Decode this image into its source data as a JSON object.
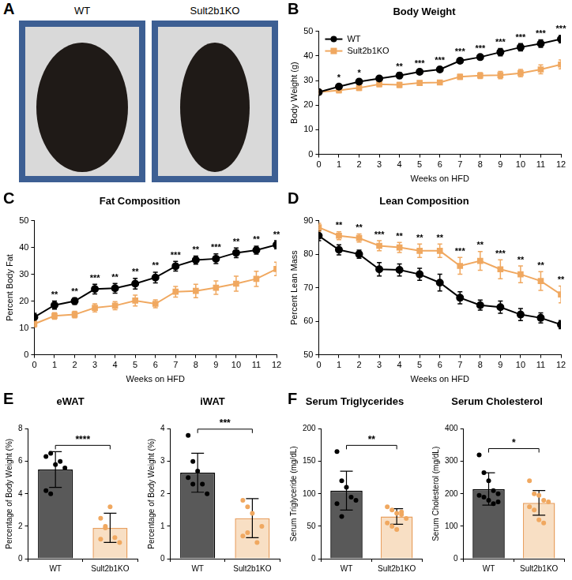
{
  "panel_a": {
    "panel_label": "A",
    "images": [
      {
        "caption": "WT"
      },
      {
        "caption": "Sult2b1KO"
      }
    ]
  },
  "chart_data": [
    {
      "panel_label": "B",
      "type": "line",
      "title": "Body Weight",
      "x_label": "Weeks on HFD",
      "y_label": "Body Weight (g)",
      "x": [
        0,
        1,
        2,
        3,
        4,
        5,
        6,
        7,
        8,
        9,
        10,
        11,
        12
      ],
      "xlim": [
        0,
        12
      ],
      "xticks": [
        0,
        1,
        2,
        3,
        4,
        5,
        6,
        7,
        8,
        9,
        10,
        11,
        12
      ],
      "ylim": [
        0,
        50
      ],
      "yticks": [
        0,
        10,
        20,
        30,
        40,
        50
      ],
      "grid": false,
      "legend": "upper left",
      "series": [
        {
          "name": "WT",
          "color": "#000000",
          "marker": "circle",
          "values": [
            25.3,
            27.5,
            29.5,
            30.8,
            32,
            33.5,
            34.5,
            38,
            39.5,
            41.5,
            43.5,
            45,
            46.8
          ],
          "errors": [
            0.8,
            1,
            1,
            1,
            1.2,
            0.8,
            1,
            1,
            0.8,
            1.5,
            1.5,
            1.5,
            1.5
          ]
        },
        {
          "name": "Sult2b1KO",
          "color": "#f0a860",
          "marker": "square",
          "values": [
            25.3,
            26,
            27,
            28.5,
            28.2,
            29,
            29.2,
            31.5,
            32,
            32.2,
            33,
            34.5,
            36.5
          ],
          "errors": [
            0.8,
            1,
            1,
            1,
            1,
            0.8,
            0.8,
            1,
            1.2,
            1.5,
            1.5,
            1.8,
            1.8
          ]
        }
      ],
      "significance": [
        null,
        "*",
        "*",
        null,
        "**",
        "***",
        "***",
        "***",
        "***",
        "***",
        "***",
        "***",
        "***"
      ]
    },
    {
      "panel_label": "C",
      "type": "line",
      "title": "Fat Composition",
      "x_label": "Weeks on HFD",
      "y_label": "Percent Body Fat",
      "x": [
        0,
        1,
        2,
        3,
        4,
        5,
        6,
        7,
        8,
        9,
        10,
        11,
        12
      ],
      "xlim": [
        0,
        12
      ],
      "xticks": [
        0,
        1,
        2,
        3,
        4,
        5,
        6,
        7,
        8,
        9,
        10,
        11,
        12
      ],
      "ylim": [
        0,
        50
      ],
      "yticks": [
        0,
        10,
        20,
        30,
        40,
        50
      ],
      "grid": false,
      "series": [
        {
          "name": "WT",
          "color": "#000000",
          "marker": "circle",
          "values": [
            14,
            18.5,
            20,
            24.5,
            24.8,
            26.5,
            28.8,
            33,
            35.3,
            35.8,
            38,
            39,
            41
          ],
          "errors": [
            1.5,
            1.5,
            1.2,
            1.8,
            1.8,
            2,
            2,
            1.8,
            1.5,
            1.8,
            1.8,
            1.5,
            1.5
          ]
        },
        {
          "name": "Sult2b1KO",
          "color": "#f0a860",
          "marker": "square",
          "values": [
            11.5,
            14.5,
            15,
            17.5,
            18.3,
            20.2,
            19,
            23.5,
            23.8,
            25,
            26.5,
            28.3,
            32
          ],
          "errors": [
            1.2,
            1.2,
            1.2,
            1.5,
            1.5,
            2,
            1.5,
            2,
            2.5,
            2.5,
            2.8,
            2.8,
            2.5
          ]
        }
      ],
      "significance": [
        null,
        "**",
        "**",
        "***",
        "**",
        "**",
        "**",
        "***",
        "**",
        "***",
        "**",
        "**",
        "**"
      ]
    },
    {
      "panel_label": "D",
      "type": "line",
      "title": "Lean Composition",
      "x_label": "Weeks on HFD",
      "y_label": "Percent Lean Mass",
      "x": [
        0,
        1,
        2,
        3,
        4,
        5,
        6,
        7,
        8,
        9,
        10,
        11,
        12
      ],
      "xlim": [
        0,
        12
      ],
      "xticks": [
        0,
        1,
        2,
        3,
        4,
        5,
        6,
        7,
        8,
        9,
        10,
        11,
        12
      ],
      "ylim": [
        50,
        90
      ],
      "yticks": [
        50,
        60,
        70,
        80,
        90
      ],
      "grid": false,
      "series": [
        {
          "name": "WT",
          "color": "#000000",
          "marker": "circle",
          "values": [
            85.5,
            81.3,
            80,
            75.5,
            75.3,
            74,
            71.5,
            67,
            64.8,
            64.2,
            62,
            61,
            59
          ],
          "errors": [
            1.5,
            1.5,
            1.2,
            2,
            1.8,
            1.8,
            2.5,
            1.8,
            1.5,
            1.8,
            1.8,
            1.5,
            1.2
          ]
        },
        {
          "name": "Sult2b1KO",
          "color": "#f0a860",
          "marker": "square",
          "values": [
            88,
            85.5,
            84.8,
            82.5,
            82,
            81,
            81,
            76.5,
            78,
            75.5,
            74,
            72,
            68
          ],
          "errors": [
            1.2,
            1.2,
            1.2,
            1.5,
            1.5,
            2,
            2,
            2.5,
            2.8,
            2.8,
            2.5,
            2.8,
            2.5
          ]
        }
      ],
      "significance": [
        null,
        "**",
        "**",
        "***",
        "**",
        "**",
        "**",
        "***",
        "**",
        "***",
        "**",
        "**",
        "**"
      ]
    },
    {
      "panel_label": "E",
      "type": "bar",
      "title": "eWAT",
      "y_label": "Percentage of Body Weight (%)",
      "categories": [
        "WT",
        "Sult2b1KO"
      ],
      "values": [
        5.5,
        1.9
      ],
      "errors": [
        1.1,
        0.9
      ],
      "points": [
        [
          6.3,
          6.5,
          5.8,
          6.0,
          5.6,
          4.2,
          4.0
        ],
        [
          2.5,
          2.0,
          3.2,
          1.3,
          1.0,
          1.2,
          1.9
        ]
      ],
      "colors": [
        "#595959",
        "#f8dfc4"
      ],
      "ylim": [
        0,
        8
      ],
      "yticks": [
        0,
        2,
        4,
        6,
        8
      ],
      "grid": false,
      "significance": "****"
    },
    {
      "type": "bar",
      "title": "iWAT",
      "y_label": "Percentage of Body Weight (%)",
      "categories": [
        "WT",
        "Sult2b1KO"
      ],
      "values": [
        2.65,
        1.25
      ],
      "errors": [
        0.6,
        0.6
      ],
      "points": [
        [
          3.8,
          3.0,
          2.7,
          2.3,
          2.0,
          2.5,
          2.3
        ],
        [
          1.8,
          1.6,
          1.4,
          0.5,
          1.0,
          0.7,
          0.8
        ]
      ],
      "colors": [
        "#595959",
        "#f8dfc4"
      ],
      "ylim": [
        0,
        4
      ],
      "yticks": [
        0,
        1,
        2,
        3,
        4
      ],
      "grid": false,
      "significance": "***"
    },
    {
      "panel_label": "F",
      "type": "bar",
      "title": "Serum Triglycerides",
      "y_label": "Serum Triglyceride (mg/dL)",
      "categories": [
        "WT",
        "Sult2b1KO"
      ],
      "values": [
        105,
        65
      ],
      "errors": [
        30,
        12
      ],
      "points": [
        [
          165,
          120,
          110,
          95,
          90,
          85,
          65
        ],
        [
          80,
          75,
          70,
          68,
          62,
          55,
          50,
          45,
          72
        ]
      ],
      "colors": [
        "#595959",
        "#f8dfc4"
      ],
      "ylim": [
        0,
        200
      ],
      "yticks": [
        0,
        50,
        100,
        150,
        200
      ],
      "grid": false,
      "significance": "**"
    },
    {
      "type": "bar",
      "title": "Serum Cholesterol",
      "y_label": "Serum Cholesterol (mg/dL)",
      "categories": [
        "WT",
        "Sult2b1KO"
      ],
      "values": [
        215,
        172
      ],
      "errors": [
        50,
        38
      ],
      "points": [
        [
          320,
          265,
          240,
          210,
          200,
          195,
          190,
          180,
          170,
          175
        ],
        [
          240,
          200,
          195,
          180,
          175,
          160,
          150,
          120,
          110
        ]
      ],
      "colors": [
        "#595959",
        "#f8dfc4"
      ],
      "ylim": [
        0,
        400
      ],
      "yticks": [
        0,
        100,
        200,
        300,
        400
      ],
      "grid": false,
      "significance": "*"
    }
  ]
}
